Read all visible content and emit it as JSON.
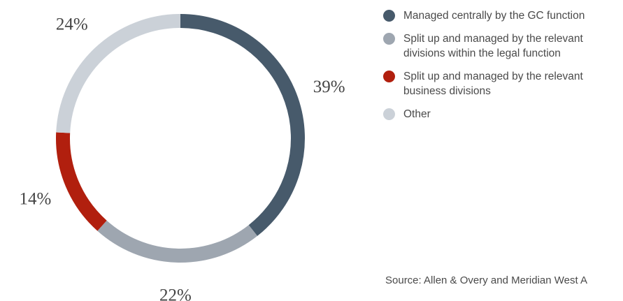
{
  "chart_data": {
    "type": "pie",
    "style": "donut",
    "slices": [
      {
        "label": "Managed centrally by the GC function",
        "value": 39,
        "value_label": "39%",
        "color": "#475a6b"
      },
      {
        "label": "Split up and managed by the relevant\ndivisions within the legal function",
        "value": 22,
        "value_label": "22%",
        "color": "#9ea6b0"
      },
      {
        "label": "Split up and managed by the relevant\nbusiness divisions",
        "value": 14,
        "value_label": "14%",
        "color": "#b11f0e"
      },
      {
        "label": "Other",
        "value": 24,
        "value_label": "24%",
        "color": "#cbd1d8"
      }
    ],
    "start_angle": "12 o'clock",
    "direction": "clockwise",
    "legend_position": "right"
  },
  "source": "Source: Allen & Overy and Meridian West A"
}
